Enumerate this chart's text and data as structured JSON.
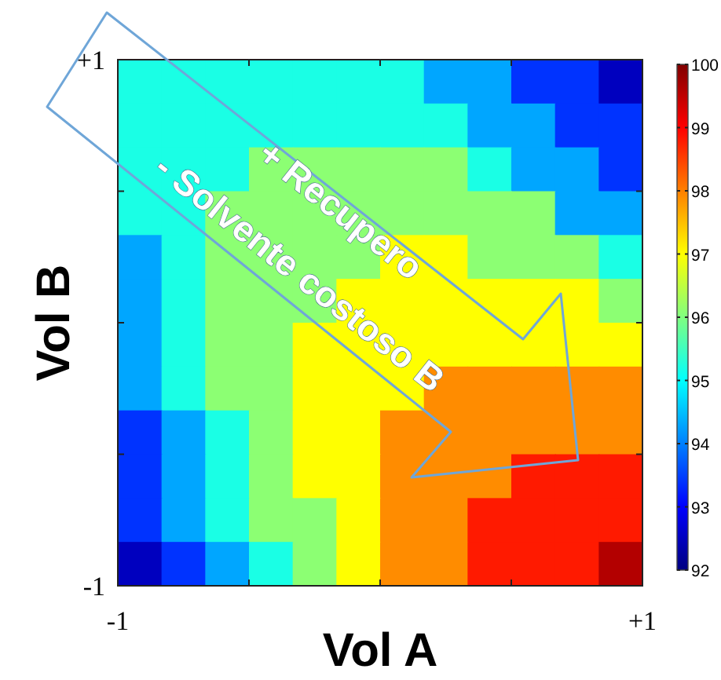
{
  "chart_data": {
    "type": "heatmap",
    "xlabel": "Vol A",
    "ylabel": "Vol B",
    "xlim": [
      -1,
      1
    ],
    "xticks": [
      {
        "value": -1,
        "label": "-1"
      },
      {
        "value": -0.5,
        "label": null
      },
      {
        "value": 0,
        "label": null
      },
      {
        "value": 0.5,
        "label": null
      },
      {
        "value": 1,
        "label": "+1"
      }
    ],
    "ylim": [
      -1,
      1
    ],
    "yticks": [
      {
        "value": -1,
        "label": "-1"
      },
      {
        "value": -0.5,
        "label": null
      },
      {
        "value": 0,
        "label": null
      },
      {
        "value": 0.5,
        "label": null
      },
      {
        "value": 1,
        "label": "+1"
      }
    ],
    "clim": [
      92,
      100
    ],
    "cticks": [
      92,
      93,
      94,
      95,
      96,
      97,
      98,
      99,
      100
    ],
    "cells": [
      [
        95.2,
        95.2,
        95.2,
        95.2,
        95.2,
        95.2,
        95.2,
        94.3,
        94.3,
        93.4,
        93.4,
        92.5
      ],
      [
        95.2,
        95.2,
        95.2,
        95.2,
        95.2,
        95.2,
        95.2,
        95.2,
        94.3,
        94.3,
        93.4,
        93.4
      ],
      [
        95.2,
        95.2,
        95.2,
        96.1,
        96.1,
        96.1,
        96.1,
        96.1,
        95.2,
        94.3,
        94.3,
        93.4
      ],
      [
        95.2,
        95.2,
        96.1,
        96.1,
        96.1,
        96.1,
        96.1,
        96.1,
        96.1,
        96.1,
        94.3,
        94.3
      ],
      [
        94.3,
        95.2,
        96.1,
        96.1,
        96.1,
        96.1,
        97.0,
        97.0,
        96.1,
        96.1,
        96.1,
        95.2
      ],
      [
        94.3,
        95.2,
        96.1,
        96.1,
        96.1,
        97.0,
        97.0,
        97.0,
        97.0,
        97.0,
        97.0,
        96.1
      ],
      [
        94.3,
        95.2,
        96.1,
        96.1,
        97.0,
        97.0,
        97.0,
        97.0,
        97.0,
        97.0,
        97.0,
        97.0
      ],
      [
        94.3,
        95.2,
        96.1,
        96.1,
        97.0,
        97.0,
        97.0,
        97.9,
        97.9,
        97.9,
        97.9,
        97.9
      ],
      [
        93.4,
        94.3,
        95.2,
        96.1,
        97.0,
        97.0,
        97.9,
        97.9,
        97.9,
        97.9,
        97.9,
        97.9
      ],
      [
        93.4,
        94.3,
        95.2,
        96.1,
        97.0,
        97.0,
        97.9,
        97.9,
        97.9,
        98.8,
        98.8,
        98.8
      ],
      [
        93.4,
        94.3,
        95.2,
        96.1,
        96.1,
        97.0,
        97.9,
        97.9,
        98.8,
        98.8,
        98.8,
        98.8
      ],
      [
        92.5,
        93.4,
        94.3,
        95.2,
        96.1,
        97.0,
        97.9,
        97.9,
        98.8,
        98.8,
        98.8,
        99.6
      ]
    ],
    "annotations": [
      "+ Recupero",
      "- Solvente costoso B"
    ]
  }
}
